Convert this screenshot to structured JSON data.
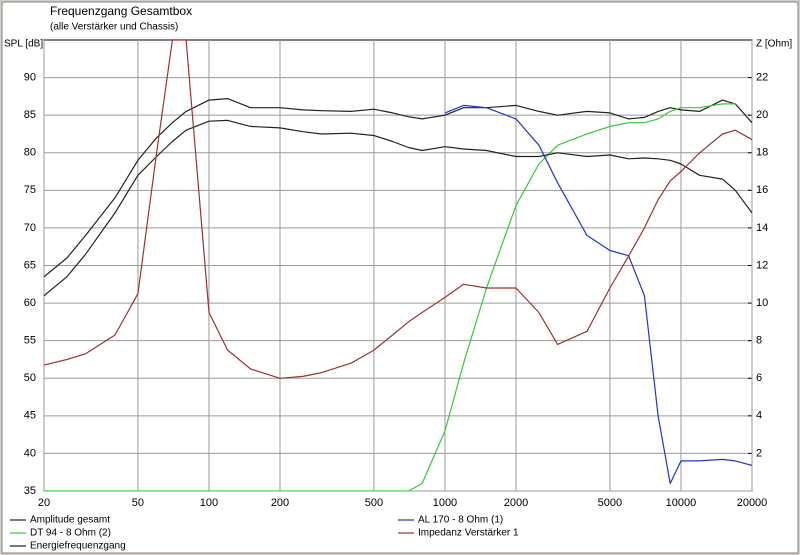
{
  "chart_data": {
    "type": "line",
    "title": "Frequenzgang Gesamtbox",
    "subtitle": "(alle Verstärker und Chassis)",
    "y_label": "SPL [dB]",
    "y2_label": "Z [Ohm]",
    "xscale": "log",
    "grid": true,
    "x": [
      20,
      25,
      30,
      40,
      50,
      60,
      70,
      80,
      100,
      120,
      150,
      200,
      250,
      300,
      400,
      500,
      600,
      700,
      800,
      1000,
      1200,
      1500,
      2000,
      2500,
      3000,
      4000,
      5000,
      6000,
      7000,
      8000,
      9000,
      10000,
      12000,
      15000,
      17000,
      20000
    ],
    "xlim": [
      20,
      20000
    ],
    "xticks": [
      20,
      50,
      100,
      200,
      500,
      1000,
      2000,
      5000,
      10000,
      20000
    ],
    "ylim": [
      35,
      95
    ],
    "yticks": [
      35,
      40,
      45,
      50,
      55,
      60,
      65,
      70,
      75,
      80,
      85,
      90
    ],
    "y2lim": [
      0,
      24
    ],
    "y2ticks": [
      2,
      4,
      6,
      8,
      10,
      12,
      14,
      16,
      18,
      20,
      22
    ],
    "series": [
      {
        "name": "Amplitude gesamt",
        "color": "#222222",
        "values": [
          63.5,
          66,
          69,
          74,
          79,
          82,
          84,
          85.5,
          87,
          87.2,
          86,
          86,
          85.7,
          85.6,
          85.5,
          85.8,
          85.3,
          84.8,
          84.5,
          85,
          86,
          86,
          86.3,
          85.5,
          85,
          85.5,
          85.3,
          84.5,
          84.7,
          85.5,
          86,
          85.7,
          85.5,
          87,
          86.5,
          84
        ]
      },
      {
        "name": "DT 94 - 8 Ohm (2)",
        "color": "#33cc33",
        "values": [
          35,
          35,
          35,
          35,
          35,
          35,
          35,
          35,
          35,
          35,
          35,
          35,
          35,
          35,
          35,
          35,
          35,
          35,
          36,
          43,
          52,
          62,
          73,
          78.5,
          81,
          82.5,
          83.5,
          84,
          84,
          84.5,
          85.5,
          86,
          86,
          86.5,
          86.5,
          null
        ]
      },
      {
        "name": "Energiefrequenzgang",
        "color": "#222222",
        "values": [
          61,
          63.5,
          66.5,
          72,
          77,
          79.5,
          81.5,
          83,
          84.2,
          84.3,
          83.5,
          83.3,
          82.8,
          82.5,
          82.6,
          82.3,
          81.5,
          80.7,
          80.3,
          80.8,
          80.5,
          80.3,
          79.5,
          79.5,
          80,
          79.5,
          79.7,
          79.2,
          79.3,
          79.2,
          79,
          78.5,
          77,
          76.5,
          75,
          72
        ]
      },
      {
        "name": "AL 170 - 8 Ohm (1)",
        "color": "#2233cc",
        "values": [
          null,
          null,
          null,
          null,
          null,
          null,
          null,
          null,
          null,
          null,
          null,
          null,
          null,
          null,
          null,
          null,
          null,
          null,
          null,
          85.3,
          86.3,
          86,
          84.5,
          81,
          76,
          69,
          67,
          66.3,
          61,
          45,
          36,
          39,
          39,
          39.2,
          39,
          38.4
        ]
      },
      {
        "name": "Impedanz Verstärker 1",
        "color": "#993333",
        "axis": "y2",
        "values": [
          6.7,
          7,
          7.3,
          8.3,
          10.5,
          18,
          24,
          24,
          9.5,
          7.5,
          6.5,
          6,
          6.1,
          6.3,
          6.8,
          7.5,
          8.3,
          9,
          9.5,
          10.3,
          11,
          10.8,
          10.8,
          9.5,
          7.8,
          8.5,
          10.8,
          12.5,
          14,
          15.5,
          16.5,
          17,
          18,
          19,
          19.2,
          18.7
        ]
      }
    ]
  }
}
